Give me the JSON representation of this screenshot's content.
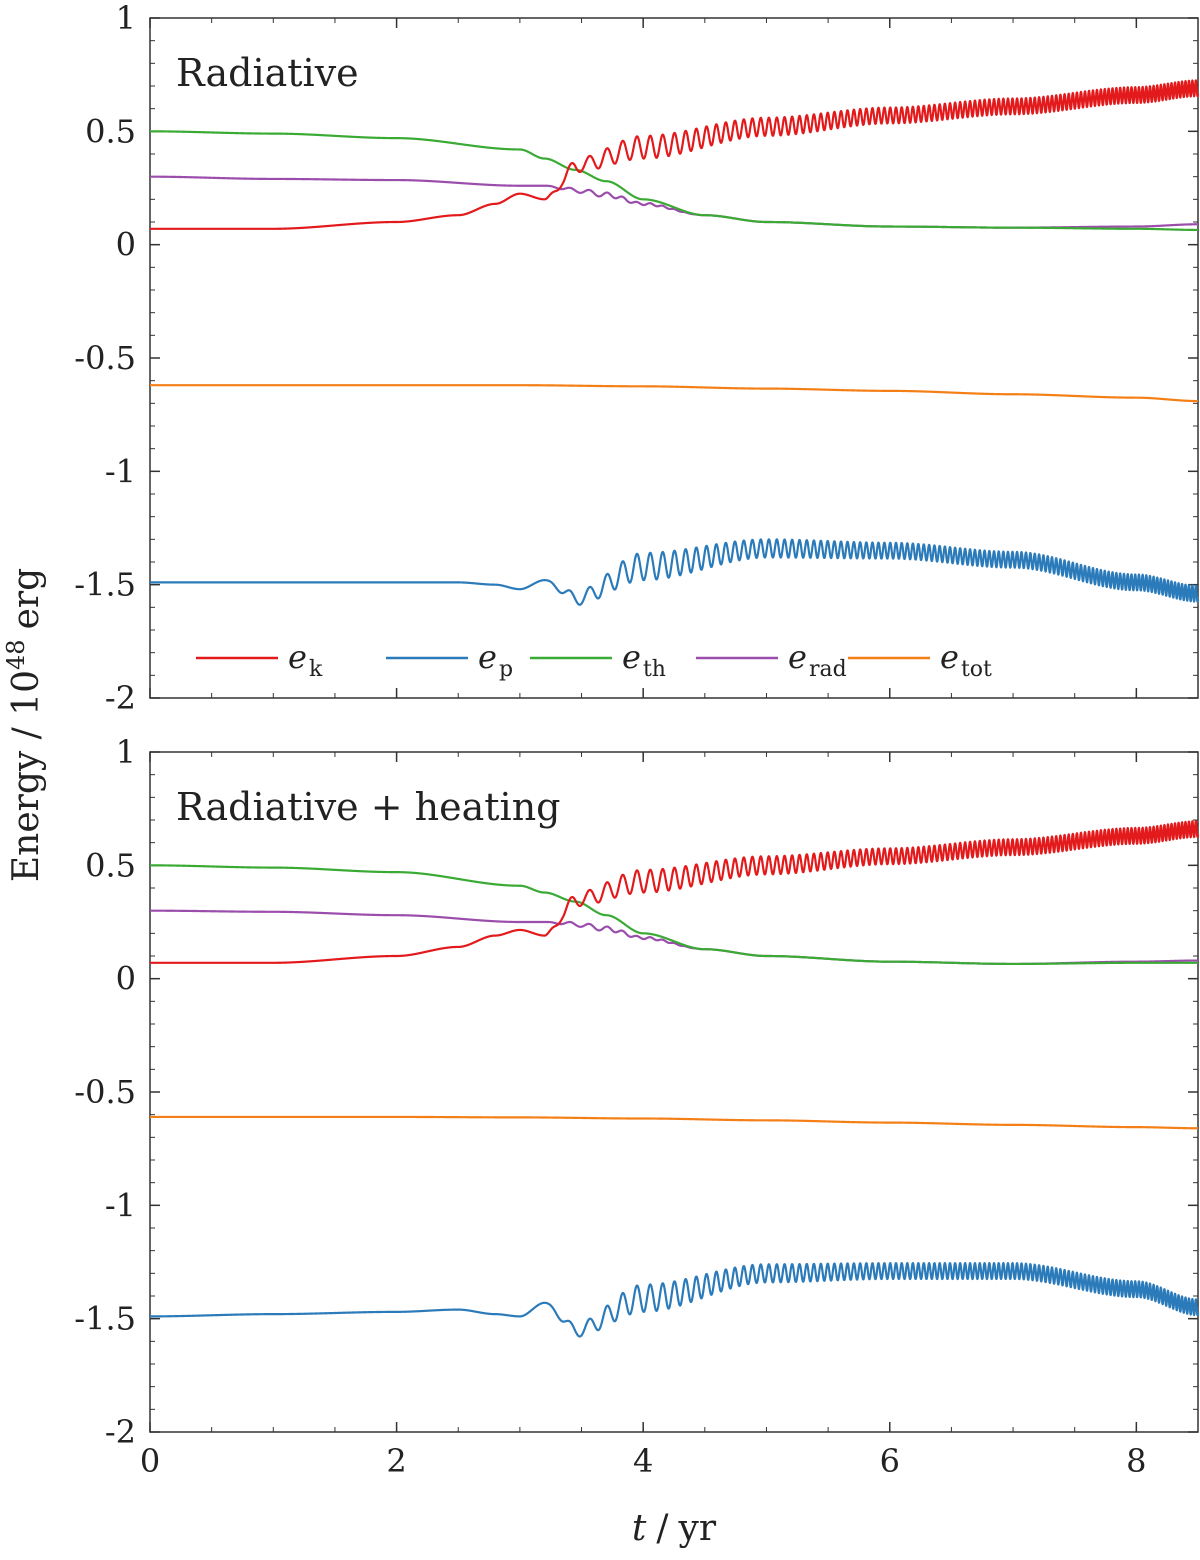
{
  "chart_data": {
    "type": "line",
    "xlabel_var": "t",
    "xlabel_unit": "yr",
    "ylabel_main": "Energy / 10",
    "ylabel_exp": "48",
    "ylabel_unit": "erg",
    "xlim": [
      0,
      8.5
    ],
    "ylim": [
      -2,
      1
    ],
    "x_ticks": [
      0,
      2,
      4,
      6,
      8
    ],
    "x_tick_labels": [
      "0",
      "2",
      "4",
      "6",
      "8"
    ],
    "y_ticks": [
      1,
      0.5,
      0,
      -0.5,
      -1,
      -1.5,
      -2
    ],
    "y_tick_labels": [
      "1",
      "0.5",
      "0",
      "-0.5",
      "-1",
      "-1.5",
      "-2"
    ],
    "legend_location": "lower-left, top panel",
    "legend": [
      {
        "key": "ek",
        "base": "e",
        "sub": "k",
        "color": "#e31a1c"
      },
      {
        "key": "ep",
        "base": "e",
        "sub": "p",
        "color": "#2b7bba"
      },
      {
        "key": "eth",
        "base": "e",
        "sub": "th",
        "color": "#3aaa35"
      },
      {
        "key": "erad",
        "base": "e",
        "sub": "rad",
        "color": "#9b4dab"
      },
      {
        "key": "etot",
        "base": "e",
        "sub": "tot",
        "color": "#f57f17"
      }
    ],
    "panels": [
      {
        "title": "Radiative",
        "series": {
          "ek": {
            "x": [
              0,
              1,
              2,
              2.5,
              2.8,
              3.0,
              3.2,
              3.35,
              3.45,
              4,
              5,
              6,
              7,
              8,
              8.5
            ],
            "y": [
              0.07,
              0.07,
              0.1,
              0.13,
              0.18,
              0.225,
              0.2,
              0.28,
              0.35,
              0.43,
              0.52,
              0.57,
              0.61,
              0.66,
              0.69
            ],
            "osc_amp": [
              0,
              0,
              0,
              0,
              0,
              0,
              0,
              0.03,
              0.03,
              0.05,
              0.04,
              0.035,
              0.035,
              0.035,
              0.035
            ]
          },
          "ep": {
            "x": [
              0,
              1,
              2,
              2.5,
              2.8,
              3.0,
              3.2,
              3.45,
              4,
              5,
              6,
              7,
              8,
              8.5
            ],
            "y": [
              -1.49,
              -1.49,
              -1.49,
              -1.49,
              -1.5,
              -1.52,
              -1.48,
              -1.56,
              -1.42,
              -1.34,
              -1.35,
              -1.39,
              -1.49,
              -1.54
            ],
            "osc_amp": [
              0,
              0,
              0,
              0,
              0,
              0,
              0,
              0.03,
              0.06,
              0.04,
              0.035,
              0.035,
              0.035,
              0.035
            ]
          },
          "eth": {
            "x": [
              0,
              1,
              2,
              3,
              3.2,
              3.45,
              3.7,
              4,
              4.5,
              5,
              6,
              7,
              8,
              8.5
            ],
            "y": [
              0.5,
              0.49,
              0.47,
              0.42,
              0.38,
              0.33,
              0.28,
              0.2,
              0.13,
              0.1,
              0.08,
              0.075,
              0.07,
              0.065
            ],
            "osc_amp": [
              0,
              0,
              0,
              0,
              0,
              0,
              0,
              0,
              0,
              0,
              0,
              0,
              0,
              0
            ]
          },
          "erad": {
            "x": [
              0,
              1,
              2,
              3,
              3.2,
              3.45,
              3.7,
              4,
              4.5,
              5,
              6,
              7,
              8,
              8.5
            ],
            "y": [
              0.3,
              0.29,
              0.285,
              0.26,
              0.26,
              0.24,
              0.22,
              0.18,
              0.13,
              0.1,
              0.08,
              0.075,
              0.08,
              0.09
            ],
            "osc_amp": [
              0,
              0,
              0,
              0,
              0,
              0.01,
              0.01,
              0.005,
              0,
              0,
              0,
              0,
              0,
              0
            ]
          },
          "etot": {
            "x": [
              0,
              2,
              3,
              4,
              5,
              6,
              7,
              8,
              8.5
            ],
            "y": [
              -0.62,
              -0.62,
              -0.62,
              -0.625,
              -0.635,
              -0.645,
              -0.66,
              -0.675,
              -0.69
            ],
            "osc_amp": [
              0,
              0,
              0,
              0,
              0,
              0,
              0,
              0,
              0
            ]
          }
        }
      },
      {
        "title": "Radiative + heating",
        "series": {
          "ek": {
            "x": [
              0,
              1,
              2,
              2.5,
              2.8,
              3.0,
              3.2,
              3.35,
              3.45,
              4,
              5,
              6,
              7,
              8,
              8.5
            ],
            "y": [
              0.07,
              0.07,
              0.1,
              0.14,
              0.19,
              0.215,
              0.19,
              0.28,
              0.35,
              0.43,
              0.5,
              0.54,
              0.58,
              0.63,
              0.66
            ],
            "osc_amp": [
              0,
              0,
              0,
              0,
              0,
              0,
              0,
              0.03,
              0.03,
              0.05,
              0.04,
              0.035,
              0.035,
              0.035,
              0.035
            ]
          },
          "ep": {
            "x": [
              0,
              1,
              2,
              2.5,
              2.8,
              3.0,
              3.2,
              3.45,
              4,
              5,
              6,
              7,
              8,
              8.5
            ],
            "y": [
              -1.49,
              -1.48,
              -1.47,
              -1.46,
              -1.48,
              -1.49,
              -1.43,
              -1.55,
              -1.41,
              -1.3,
              -1.29,
              -1.29,
              -1.37,
              -1.45
            ],
            "osc_amp": [
              0,
              0,
              0,
              0,
              0,
              0,
              0,
              0.03,
              0.06,
              0.04,
              0.035,
              0.035,
              0.035,
              0.035
            ]
          },
          "eth": {
            "x": [
              0,
              1,
              2,
              3,
              3.2,
              3.45,
              3.7,
              4,
              4.5,
              5,
              6,
              7,
              8,
              8.5
            ],
            "y": [
              0.5,
              0.49,
              0.47,
              0.41,
              0.38,
              0.34,
              0.28,
              0.2,
              0.13,
              0.1,
              0.075,
              0.065,
              0.07,
              0.07
            ],
            "osc_amp": [
              0,
              0,
              0,
              0,
              0,
              0,
              0,
              0,
              0,
              0,
              0,
              0,
              0,
              0
            ]
          },
          "erad": {
            "x": [
              0,
              1,
              2,
              3,
              3.2,
              3.45,
              3.7,
              4,
              4.5,
              5,
              6,
              7,
              8,
              8.5
            ],
            "y": [
              0.3,
              0.295,
              0.28,
              0.25,
              0.25,
              0.24,
              0.22,
              0.18,
              0.13,
              0.1,
              0.075,
              0.065,
              0.075,
              0.08
            ],
            "osc_amp": [
              0,
              0,
              0,
              0,
              0,
              0.01,
              0.01,
              0.005,
              0,
              0,
              0,
              0,
              0,
              0
            ]
          },
          "etot": {
            "x": [
              0,
              2,
              3,
              4,
              5,
              6,
              7,
              8,
              8.5
            ],
            "y": [
              -0.61,
              -0.61,
              -0.612,
              -0.617,
              -0.625,
              -0.635,
              -0.645,
              -0.655,
              -0.66
            ],
            "osc_amp": [
              0,
              0,
              0,
              0,
              0,
              0,
              0,
              0,
              0
            ]
          }
        }
      }
    ]
  }
}
